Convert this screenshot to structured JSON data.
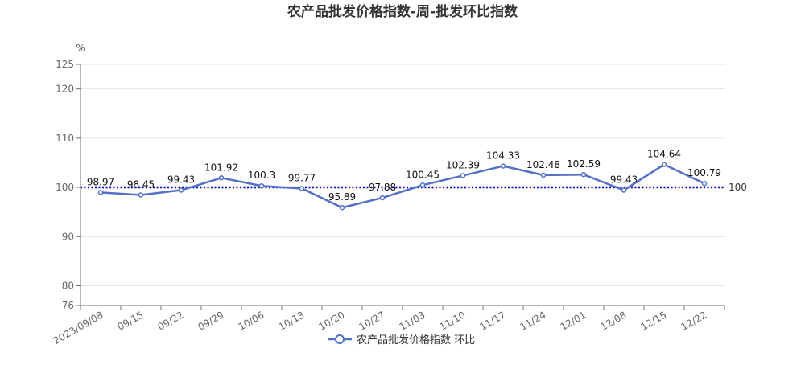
{
  "chart_data": {
    "type": "line",
    "title": "农产品批发价格指数-周-批发环比指数",
    "ylabel": "%",
    "xlabel": "",
    "ylim": [
      76,
      125
    ],
    "yticks": [
      76,
      80,
      90,
      100,
      110,
      120,
      125
    ],
    "grid": true,
    "legend_position": "bottom",
    "categories": [
      "2023/09/08",
      "09/15",
      "09/22",
      "09/29",
      "10/06",
      "10/13",
      "10/20",
      "10/27",
      "11/03",
      "11/10",
      "11/17",
      "11/24",
      "12/01",
      "12/08",
      "12/15",
      "12/22"
    ],
    "series": [
      {
        "name": "农产品批发价格指数 环比",
        "color": "#5470c6",
        "values": [
          98.97,
          98.45,
          99.43,
          101.92,
          100.3,
          99.77,
          95.89,
          97.88,
          100.45,
          102.39,
          104.33,
          102.48,
          102.59,
          99.43,
          104.64,
          100.79
        ],
        "labels": [
          "98.97",
          "98.45",
          "99.43",
          "101.92",
          "100.3",
          "99.77",
          "95.89",
          "97.88",
          "100.45",
          "102.39",
          "104.33",
          "102.48",
          "102.59",
          "99.43",
          "104.64",
          "100.79"
        ]
      }
    ],
    "reference_line": {
      "value": 100,
      "label": "100",
      "color": "#0000cc",
      "style": "dotted"
    }
  }
}
